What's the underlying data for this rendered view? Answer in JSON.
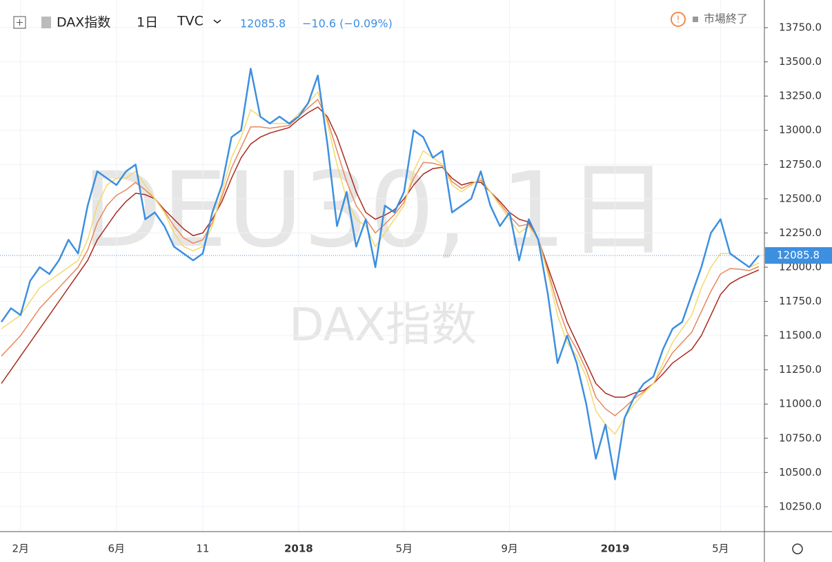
{
  "header": {
    "symbol": "DAX指数",
    "interval": "1日",
    "source": "TVC",
    "change": "−10.6 (−0.09%)",
    "status": "市場終了"
  },
  "watermark": {
    "ticker": "DEU30, 1日",
    "name": "DAX指数"
  },
  "chart_data": {
    "type": "line",
    "categories": [
      null,
      null,
      "2月",
      null,
      null,
      null,
      null,
      null,
      null,
      null,
      null,
      null,
      "6月",
      null,
      null,
      null,
      null,
      null,
      null,
      null,
      null,
      "11",
      null,
      null,
      null,
      null,
      null,
      null,
      null,
      null,
      null,
      "2018",
      null,
      null,
      null,
      null,
      null,
      null,
      null,
      null,
      null,
      null,
      "5月",
      null,
      null,
      null,
      null,
      null,
      null,
      null,
      null,
      null,
      null,
      "9月",
      null,
      null,
      null,
      null,
      null,
      null,
      null,
      null,
      null,
      null,
      "2019",
      null,
      null,
      null,
      null,
      null,
      null,
      null,
      null,
      null,
      null,
      "5月",
      null,
      null,
      null,
      null
    ],
    "series": [
      {
        "name": "DAX指数",
        "color": "#3d8fe0",
        "values": [
          11600,
          11700,
          11650,
          11900,
          12000,
          11950,
          12050,
          12200,
          12100,
          12450,
          12700,
          12650,
          12600,
          12700,
          12750,
          12350,
          12400,
          12300,
          12150,
          12100,
          12050,
          12100,
          12400,
          12600,
          12950,
          13000,
          13450,
          13100,
          13050,
          13100,
          13050,
          13100,
          13200,
          13400,
          12900,
          12300,
          12550,
          12150,
          12350,
          12000,
          12450,
          12400,
          12550,
          13000,
          12950,
          12800,
          12850,
          12400,
          12450,
          12500,
          12700,
          12450,
          12300,
          12400,
          12050,
          12350,
          12200,
          11800,
          11300,
          11500,
          11300,
          11000,
          10600,
          10850,
          10450,
          10900,
          11050,
          11150,
          11200,
          11400,
          11550,
          11600,
          11800,
          12000,
          12250,
          12350,
          12100,
          12050,
          12000,
          12085.8
        ]
      },
      {
        "color": "#f3d96a",
        "values": [
          11550,
          11600,
          11650,
          11750,
          11850,
          11900,
          11950,
          12000,
          12050,
          12200,
          12450,
          12600,
          12650,
          12650,
          12700,
          12600,
          12500,
          12400,
          12250,
          12150,
          12120,
          12150,
          12300,
          12550,
          12800,
          12950,
          13150,
          13100,
          13050,
          13050,
          13050,
          13120,
          13200,
          13280,
          13050,
          12750,
          12500,
          12350,
          12300,
          12150,
          12250,
          12350,
          12450,
          12700,
          12850,
          12800,
          12750,
          12600,
          12550,
          12600,
          12650,
          12550,
          12450,
          12350,
          12250,
          12300,
          12200,
          11950,
          11650,
          11450,
          11350,
          11200,
          10950,
          10850,
          10780,
          10900,
          11000,
          11080,
          11150,
          11300,
          11450,
          11550,
          11650,
          11850,
          12000,
          12100,
          12100,
          12050,
          12000,
          12030
        ]
      },
      {
        "color": "#e8875a",
        "values": [
          11350,
          11425,
          11500,
          11600,
          11700,
          11775,
          11850,
          11925,
          12000,
          12125,
          12325,
          12450,
          12525,
          12565,
          12620,
          12565,
          12500,
          12410,
          12300,
          12215,
          12175,
          12200,
          12325,
          12515,
          12725,
          12875,
          13025,
          13025,
          13015,
          13025,
          13035,
          13100,
          13165,
          13225,
          13075,
          12850,
          12625,
          12450,
          12350,
          12250,
          12315,
          12385,
          12475,
          12650,
          12765,
          12760,
          12740,
          12625,
          12575,
          12610,
          12635,
          12550,
          12465,
          12375,
          12300,
          12315,
          12200,
          11975,
          11725,
          11525,
          11400,
          11250,
          11050,
          10965,
          10915,
          10975,
          11040,
          11090,
          11150,
          11260,
          11375,
          11450,
          11525,
          11675,
          11825,
          11950,
          11990,
          11985,
          11975,
          12005
        ]
      },
      {
        "color": "#a8281c",
        "values": [
          11150,
          11250,
          11350,
          11450,
          11550,
          11650,
          11750,
          11850,
          11950,
          12050,
          12200,
          12300,
          12400,
          12480,
          12540,
          12530,
          12500,
          12420,
          12350,
          12280,
          12230,
          12250,
          12350,
          12480,
          12650,
          12800,
          12900,
          12950,
          12980,
          13000,
          13020,
          13080,
          13130,
          13170,
          13100,
          12950,
          12750,
          12550,
          12400,
          12350,
          12380,
          12420,
          12500,
          12600,
          12680,
          12720,
          12730,
          12650,
          12600,
          12620,
          12620,
          12550,
          12480,
          12400,
          12350,
          12330,
          12200,
          12000,
          11800,
          11600,
          11450,
          11300,
          11150,
          11080,
          11050,
          11050,
          11080,
          11100,
          11150,
          11220,
          11300,
          11350,
          11400,
          11500,
          11650,
          11800,
          11880,
          11920,
          11950,
          11980
        ]
      }
    ],
    "ylim": [
      10068,
      13952
    ],
    "yticks": [
      {
        "value": 10250,
        "label": "10250.0"
      },
      {
        "value": 10500,
        "label": "10500.0"
      },
      {
        "value": 10750,
        "label": "10750.0"
      },
      {
        "value": 11000,
        "label": "11000.0"
      },
      {
        "value": 11250,
        "label": "11250.0"
      },
      {
        "value": 11500,
        "label": "11500.0"
      },
      {
        "value": 11750,
        "label": "11750.0"
      },
      {
        "value": 12000,
        "label": "12000.0"
      },
      {
        "value": 12250,
        "label": "12250.0"
      },
      {
        "value": 12500,
        "label": "12500.0"
      },
      {
        "value": 12750,
        "label": "12750.0"
      },
      {
        "value": 13000,
        "label": "13000.0"
      },
      {
        "value": 13250,
        "label": "13250.0"
      },
      {
        "value": 13500,
        "label": "13500.0"
      },
      {
        "value": 13750,
        "label": "13750.0"
      }
    ],
    "grid": true
  }
}
